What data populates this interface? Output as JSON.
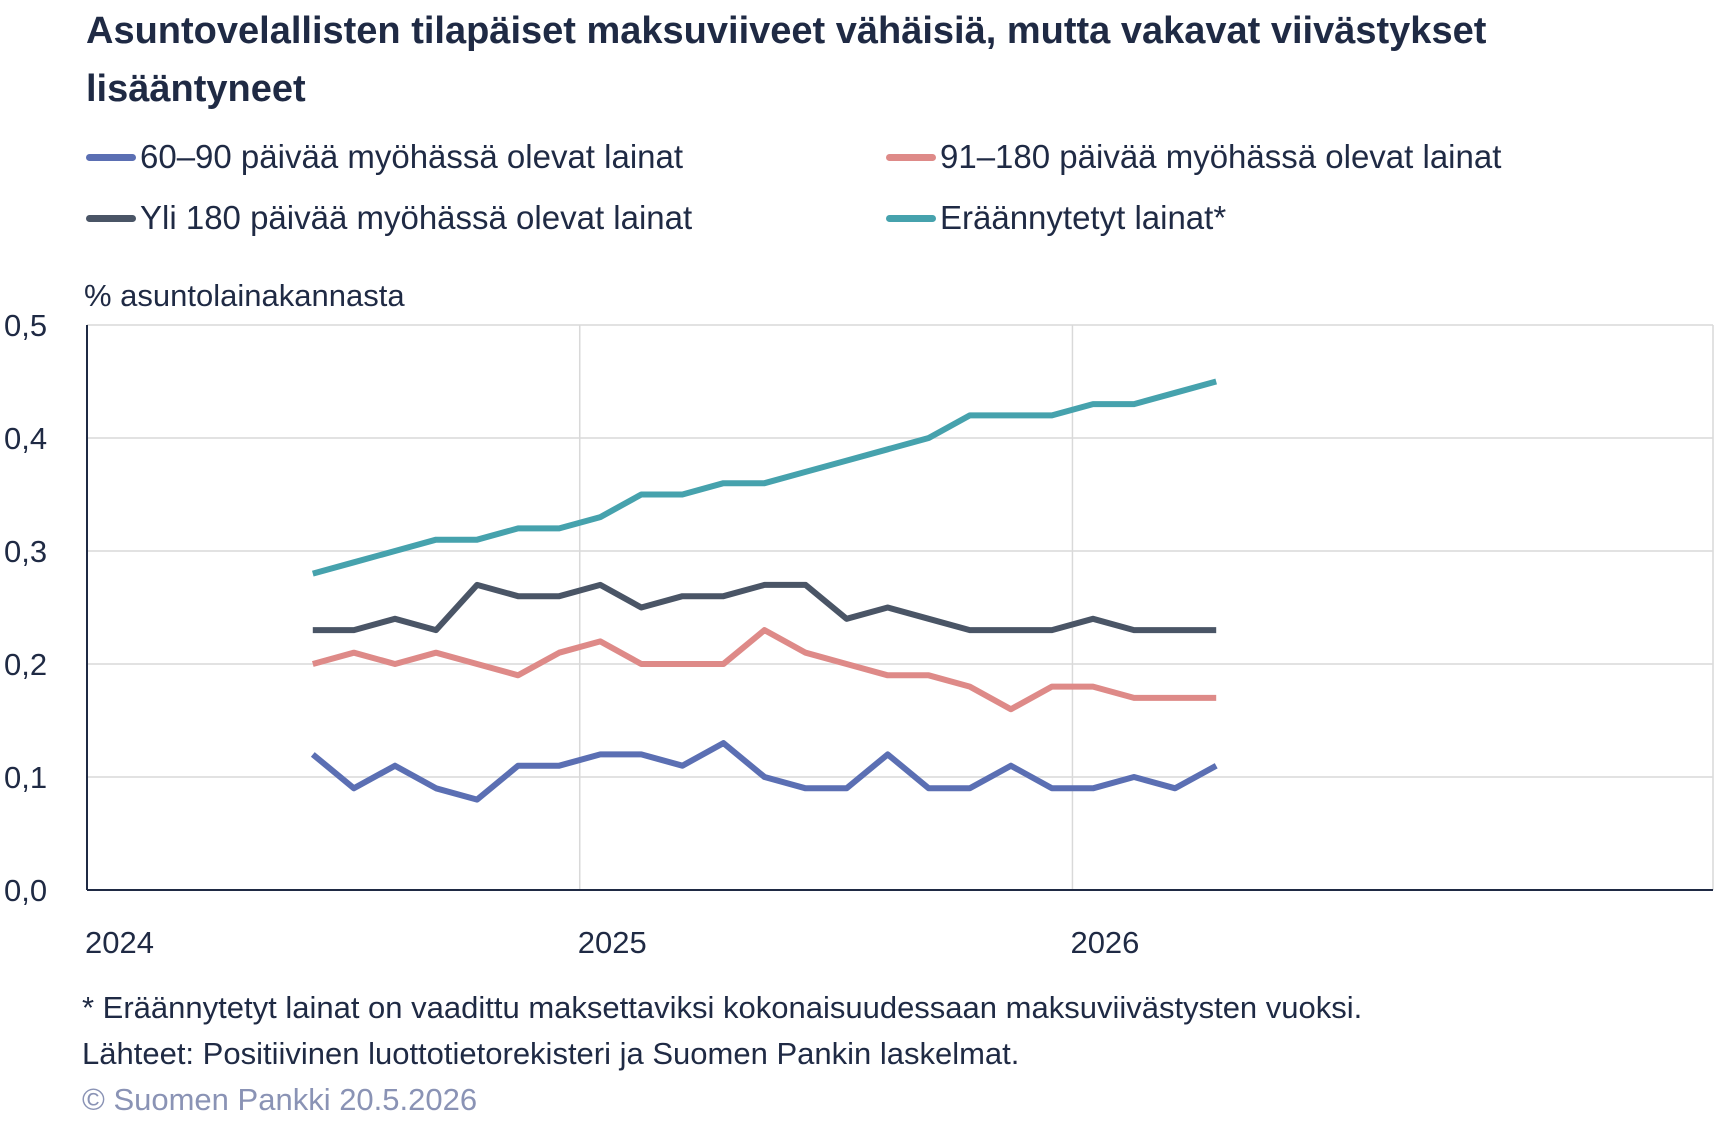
{
  "title": "Asuntovelallisten tilapäiset maksuviiveet vähäisiä, mutta vakavat viivästykset lisääntyneet",
  "legend": [
    {
      "label": "60–90 päivää myöhässä olevat lainat",
      "color": "#5b6fb3"
    },
    {
      "label": "91–180 päivää myöhässä olevat lainat",
      "color": "#de8a88"
    },
    {
      "label": "Yli 180 päivää myöhässä olevat lainat",
      "color": "#4a5566"
    },
    {
      "label": "Eräännytetyt lainat*",
      "color": "#46a2ad"
    }
  ],
  "footer": {
    "note": "* Eräännytetyt lainat on vaadittu maksettaviksi kokonaisuudessaan maksuviivästysten vuoksi.",
    "source": "Lähteet: Positiivinen luottotietorekisteri ja Suomen Pankin laskelmat.",
    "copyright": "© Suomen Pankki 20.5.2026"
  },
  "chart_data": {
    "type": "line",
    "ylabel": "% asuntolainakannasta",
    "ylim": [
      0,
      0.5
    ],
    "yticks": [
      "0,0",
      "0,1",
      "0,2",
      "0,3",
      "0,4",
      "0,5"
    ],
    "xticks": [
      "2024",
      "2025",
      "2026"
    ],
    "x": [
      "2024-06",
      "2024-07",
      "2024-08",
      "2024-09",
      "2024-10",
      "2024-11",
      "2024-12",
      "2025-01",
      "2025-02",
      "2025-03",
      "2025-04",
      "2025-05",
      "2025-06",
      "2025-07",
      "2025-08",
      "2025-09",
      "2025-10",
      "2025-11",
      "2025-12",
      "2026-01",
      "2026-02",
      "2026-03",
      "2026-04"
    ],
    "grid": true,
    "legend_position": "top",
    "series": [
      {
        "name": "60–90 päivää myöhässä olevat lainat",
        "color": "#5b6fb3",
        "values": [
          0.12,
          0.09,
          0.11,
          0.09,
          0.08,
          0.11,
          0.11,
          0.12,
          0.12,
          0.11,
          0.13,
          0.1,
          0.09,
          0.09,
          0.12,
          0.09,
          0.09,
          0.11,
          0.09,
          0.09,
          0.1,
          0.09,
          0.11
        ]
      },
      {
        "name": "91–180 päivää myöhässä olevat lainat",
        "color": "#de8a88",
        "values": [
          0.2,
          0.21,
          0.2,
          0.21,
          0.2,
          0.19,
          0.21,
          0.22,
          0.2,
          0.2,
          0.2,
          0.23,
          0.21,
          0.2,
          0.19,
          0.19,
          0.18,
          0.16,
          0.18,
          0.18,
          0.17,
          0.17,
          0.17
        ]
      },
      {
        "name": "Yli 180 päivää myöhässä olevat lainat",
        "color": "#4a5566",
        "values": [
          0.23,
          0.23,
          0.24,
          0.23,
          0.27,
          0.26,
          0.26,
          0.27,
          0.25,
          0.26,
          0.26,
          0.27,
          0.27,
          0.24,
          0.25,
          0.24,
          0.23,
          0.23,
          0.23,
          0.24,
          0.23,
          0.23,
          0.23
        ]
      },
      {
        "name": "Eräännytetyt lainat*",
        "color": "#46a2ad",
        "values": [
          0.28,
          0.29,
          0.3,
          0.31,
          0.31,
          0.32,
          0.32,
          0.33,
          0.35,
          0.35,
          0.36,
          0.36,
          0.37,
          0.38,
          0.39,
          0.4,
          0.42,
          0.42,
          0.42,
          0.43,
          0.43,
          0.44,
          0.45
        ]
      }
    ]
  }
}
